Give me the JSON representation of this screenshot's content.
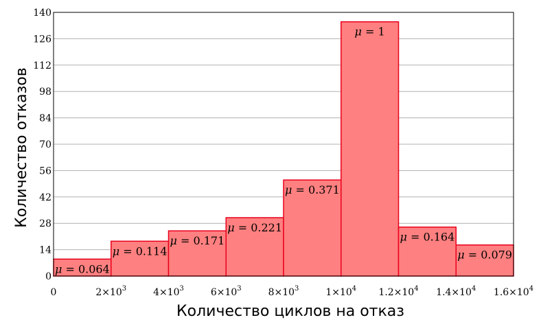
{
  "chart_data": {
    "type": "bar",
    "xlabel": "Количество циклов на отказ",
    "ylabel": "Количество отказов",
    "ylim": [
      0,
      140
    ],
    "xlim": [
      0,
      16000
    ],
    "y_ticks": [
      "0",
      "14",
      "28",
      "42",
      "56",
      "70",
      "84",
      "98",
      "112",
      "126",
      "140"
    ],
    "x_ticks": [
      {
        "value": 0,
        "mant": "0",
        "exp": ""
      },
      {
        "value": 2000,
        "mant": "2×10",
        "exp": "3"
      },
      {
        "value": 4000,
        "mant": "4×10",
        "exp": "3"
      },
      {
        "value": 6000,
        "mant": "6×10",
        "exp": "3"
      },
      {
        "value": 8000,
        "mant": "8×10",
        "exp": "3"
      },
      {
        "value": 10000,
        "mant": "1×10",
        "exp": "4"
      },
      {
        "value": 12000,
        "mant": "1.2×10",
        "exp": "4"
      },
      {
        "value": 14000,
        "mant": "1.4×10",
        "exp": "4"
      },
      {
        "value": 16000,
        "mant": "1.6×10",
        "exp": "4"
      }
    ],
    "bins": [
      {
        "x0": 0,
        "x1": 2000,
        "value": 9,
        "label": "= 0.064"
      },
      {
        "x0": 2000,
        "x1": 4000,
        "value": 18.5,
        "label": "= 0.114"
      },
      {
        "x0": 4000,
        "x1": 6000,
        "value": 24,
        "label": "= 0.171"
      },
      {
        "x0": 6000,
        "x1": 8000,
        "value": 31,
        "label": "= 0.221"
      },
      {
        "x0": 8000,
        "x1": 10000,
        "value": 51,
        "label": "= 0.371"
      },
      {
        "x0": 10000,
        "x1": 12000,
        "value": 135,
        "label": "= 1"
      },
      {
        "x0": 12000,
        "x1": 14000,
        "value": 26,
        "label": "= 0.164"
      },
      {
        "x0": 14000,
        "x1": 16000,
        "value": 16.5,
        "label": "= 0.079"
      }
    ],
    "label_symbol": "μ",
    "colors": {
      "bar_fill": "#ff8080",
      "bar_stroke": "#e8001c",
      "grid": "#b0b0b0"
    },
    "grid": true
  }
}
